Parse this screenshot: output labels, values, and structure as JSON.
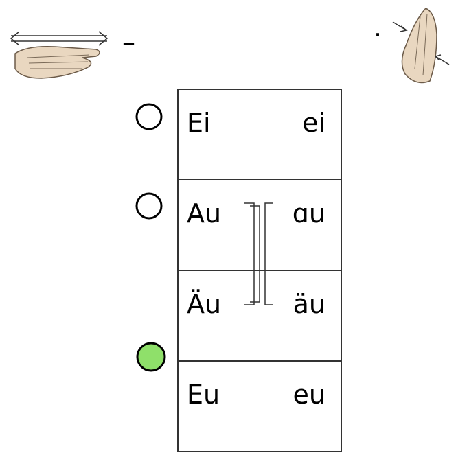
{
  "top": {
    "left_mark": "–",
    "right_mark": "·"
  },
  "table": {
    "rows": [
      [
        "Ei",
        "ei"
      ],
      [
        "Au",
        "ɑu"
      ],
      [
        "Äu",
        "äu"
      ],
      [
        "Eu",
        "eu"
      ]
    ]
  }
}
